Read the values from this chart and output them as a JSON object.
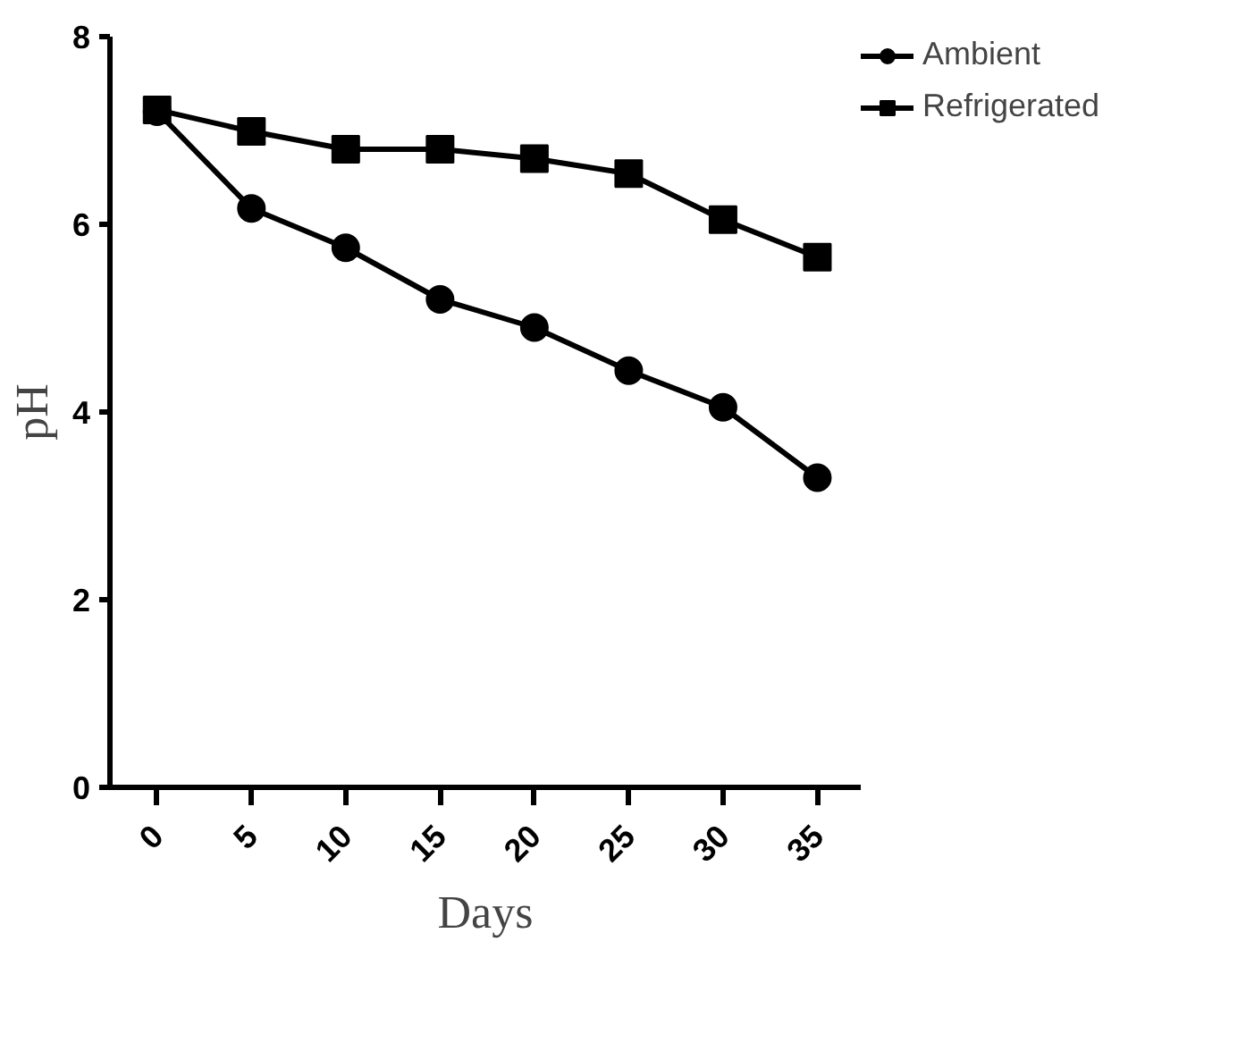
{
  "chart_data": {
    "type": "line",
    "xlabel": "Days",
    "ylabel": "pH",
    "x": [
      0,
      5,
      10,
      15,
      20,
      25,
      30,
      35
    ],
    "xlim": [
      -2.5,
      37.3
    ],
    "xticks": [
      0,
      5,
      10,
      15,
      20,
      25,
      30,
      35
    ],
    "ylim": [
      0,
      8
    ],
    "yticks": [
      0,
      2,
      4,
      6,
      8
    ],
    "series": [
      {
        "name": "Ambient",
        "color": "#000000",
        "marker": "circle",
        "values": [
          7.2,
          6.17,
          5.75,
          5.2,
          4.9,
          4.44,
          4.05,
          3.3
        ]
      },
      {
        "name": "Refrigerated",
        "color": "#000000",
        "marker": "square",
        "values": [
          7.22,
          6.99,
          6.8,
          6.8,
          6.7,
          6.54,
          6.05,
          5.65
        ]
      }
    ],
    "legend": "right",
    "grid": false,
    "line_style": "solid"
  }
}
